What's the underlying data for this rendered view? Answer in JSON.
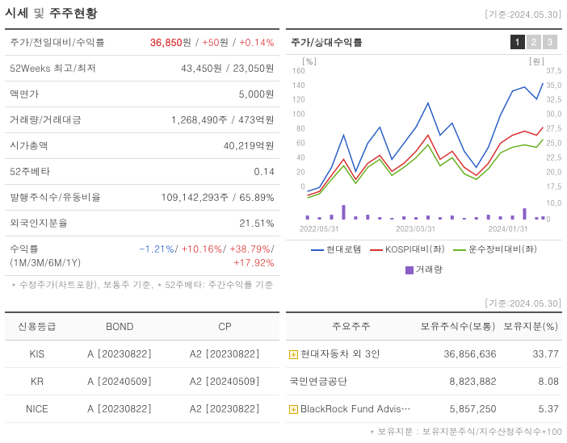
{
  "header": {
    "title_prefix": "시세",
    "title_mid": " 및 ",
    "title_suffix": "주주현황",
    "date_label": "[기준:2024.05.30]"
  },
  "info_rows": [
    {
      "label": "주가/전일대비/수익률",
      "value_parts": [
        {
          "text": "36,850",
          "cls": "red bold"
        },
        {
          "text": "원 / ",
          "cls": ""
        },
        {
          "text": "+50",
          "cls": "red"
        },
        {
          "text": "원 / ",
          "cls": ""
        },
        {
          "text": "+0.14%",
          "cls": "red"
        }
      ]
    },
    {
      "label": "52Weeks 최고/최저",
      "value": "43,450원 / 23,050원"
    },
    {
      "label": "액면가",
      "value": "5,000원"
    },
    {
      "label": "거래량/거래대금",
      "value": "1,268,490주 / 473억원"
    },
    {
      "label": "시가총액",
      "value": "40,219억원"
    },
    {
      "label": "52주베타",
      "value": "0.14"
    },
    {
      "label": "발행주식수/유동비율",
      "value": "109,142,293주 / 65.89%"
    },
    {
      "label": "외국인지분율",
      "value": "21.51%"
    },
    {
      "label": "수익률 (1M/3M/6M/1Y)",
      "value_parts": [
        {
          "text": "-1.21%",
          "cls": "blue"
        },
        {
          "text": "/ ",
          "cls": ""
        },
        {
          "text": "+10.16%",
          "cls": "red"
        },
        {
          "text": "/ ",
          "cls": ""
        },
        {
          "text": "+38.79%",
          "cls": "red"
        },
        {
          "text": "/ ",
          "cls": ""
        },
        {
          "text": "+17.92%",
          "cls": "red"
        }
      ]
    }
  ],
  "info_footnote": "* 수정주가(차트포함), 보통주 기준, * 52주베타: 주간수익률 기준",
  "chart": {
    "title": "주가/상대수익률",
    "tabs": [
      "1",
      "2",
      "3"
    ],
    "active_tab": 0,
    "left_axis": {
      "label": "[%]",
      "ticks": [
        "160",
        "140",
        "120",
        "100",
        "80",
        "60",
        "40",
        "20",
        "0"
      ]
    },
    "right_axis": {
      "label": "[원]",
      "ticks": [
        "37,500",
        "35,000",
        "32,500",
        "30,000",
        "27,500",
        "25,000",
        "22,500",
        "20,000",
        "17,500"
      ]
    },
    "right_vol_ticks": [
      "10,000,000",
      "0"
    ],
    "x_ticks": [
      "2022/05/31",
      "2023/03/31",
      "2024/01/31"
    ],
    "series": {
      "blue": {
        "color": "#2b5fc7",
        "points": [
          [
            15,
            170
          ],
          [
            30,
            165
          ],
          [
            45,
            140
          ],
          [
            60,
            100
          ],
          [
            75,
            145
          ],
          [
            90,
            110
          ],
          [
            105,
            90
          ],
          [
            120,
            130
          ],
          [
            135,
            110
          ],
          [
            150,
            90
          ],
          [
            165,
            60
          ],
          [
            180,
            100
          ],
          [
            195,
            85
          ],
          [
            210,
            120
          ],
          [
            225,
            140
          ],
          [
            240,
            115
          ],
          [
            255,
            75
          ],
          [
            270,
            45
          ],
          [
            285,
            40
          ],
          [
            300,
            55
          ],
          [
            308,
            35
          ]
        ]
      },
      "red": {
        "color": "#d92e2e",
        "points": [
          [
            15,
            175
          ],
          [
            30,
            170
          ],
          [
            45,
            150
          ],
          [
            60,
            130
          ],
          [
            75,
            155
          ],
          [
            90,
            135
          ],
          [
            105,
            125
          ],
          [
            120,
            145
          ],
          [
            135,
            135
          ],
          [
            150,
            120
          ],
          [
            165,
            100
          ],
          [
            180,
            130
          ],
          [
            195,
            120
          ],
          [
            210,
            140
          ],
          [
            225,
            150
          ],
          [
            240,
            135
          ],
          [
            255,
            110
          ],
          [
            270,
            100
          ],
          [
            285,
            95
          ],
          [
            300,
            100
          ],
          [
            308,
            90
          ]
        ]
      },
      "green": {
        "color": "#6ab023",
        "points": [
          [
            15,
            178
          ],
          [
            30,
            173
          ],
          [
            45,
            155
          ],
          [
            60,
            138
          ],
          [
            75,
            160
          ],
          [
            90,
            140
          ],
          [
            105,
            130
          ],
          [
            120,
            150
          ],
          [
            135,
            140
          ],
          [
            150,
            128
          ],
          [
            165,
            112
          ],
          [
            180,
            138
          ],
          [
            195,
            128
          ],
          [
            210,
            148
          ],
          [
            225,
            155
          ],
          [
            240,
            142
          ],
          [
            255,
            122
          ],
          [
            270,
            115
          ],
          [
            285,
            112
          ],
          [
            300,
            115
          ],
          [
            308,
            105
          ]
        ]
      }
    },
    "volume_bars": {
      "color": "#8a5fc7",
      "bars": [
        [
          15,
          5
        ],
        [
          30,
          3
        ],
        [
          45,
          6
        ],
        [
          60,
          18
        ],
        [
          75,
          4
        ],
        [
          90,
          6
        ],
        [
          105,
          3
        ],
        [
          120,
          2
        ],
        [
          135,
          4
        ],
        [
          150,
          3
        ],
        [
          165,
          5
        ],
        [
          180,
          3
        ],
        [
          195,
          5
        ],
        [
          210,
          2
        ],
        [
          225,
          3
        ],
        [
          240,
          6
        ],
        [
          255,
          4
        ],
        [
          270,
          5
        ],
        [
          285,
          14
        ],
        [
          300,
          3
        ],
        [
          308,
          4
        ]
      ]
    },
    "legend": [
      {
        "type": "line",
        "color": "#2b5fc7",
        "label": "현대로템"
      },
      {
        "type": "line",
        "color": "#d92e2e",
        "label": "KOSPI대비(좌)"
      },
      {
        "type": "line",
        "color": "#6ab023",
        "label": "운수장비대비(좌)"
      },
      {
        "type": "box",
        "color": "#8a5fc7",
        "label": "거래량"
      }
    ]
  },
  "credit": {
    "headers": [
      "신용등급",
      "BOND",
      "CP"
    ],
    "rows": [
      {
        "name": "KIS",
        "bond": "A  [20230822]",
        "cp": "A2  [20230822]"
      },
      {
        "name": "KR",
        "bond": "A  [20240509]",
        "cp": "A2  [20240509]"
      },
      {
        "name": "NICE",
        "bond": "A  [20230822]",
        "cp": "A2  [20230822]"
      }
    ]
  },
  "shareholders": {
    "date_label": "[기준:2024.05.30]",
    "headers": [
      "주요주주",
      "보유주식수(보통)",
      "보유지분(%)"
    ],
    "rows": [
      {
        "expand": true,
        "name": "현대자동차 외 3인",
        "shares": "36,856,636",
        "pct": "33.77"
      },
      {
        "expand": false,
        "name": "국민연금공단",
        "shares": "8,823,882",
        "pct": "8.08"
      },
      {
        "expand": true,
        "name": "BlackRock Fund Advis…",
        "shares": "5,857,250",
        "pct": "5.37"
      }
    ],
    "footnote": "* 보유지분 : 보유지분주식/지수산정주식수*100"
  }
}
